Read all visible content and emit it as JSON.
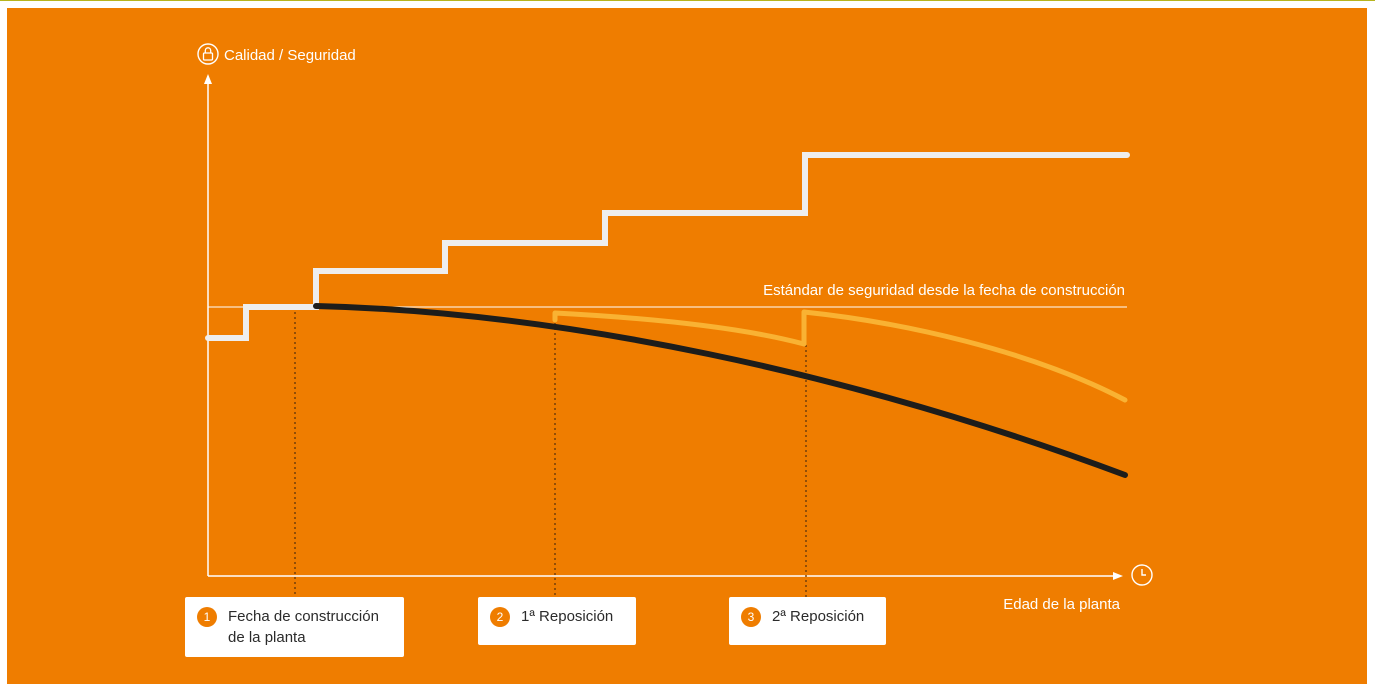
{
  "axes": {
    "y_label": "Calidad / Seguridad",
    "x_label": "Edad de la planta",
    "y_icon": "lock-icon",
    "x_icon": "clock-icon"
  },
  "reference_line_label": "Estándar de seguridad desde la fecha de construcción",
  "callouts": [
    {
      "number": "1",
      "line1": "Fecha de construcción",
      "line2": "de la planta"
    },
    {
      "number": "2",
      "line1": "1ª Reposición",
      "line2": ""
    },
    {
      "number": "3",
      "line1": "2ª Reposición",
      "line2": ""
    }
  ],
  "colors": {
    "background": "#ef7d00",
    "standard_line": "#eeeeee",
    "no_renewal_line": "#1d1d1b",
    "with_renewal_line": "#f9b233",
    "axis": "#ffffff"
  }
}
